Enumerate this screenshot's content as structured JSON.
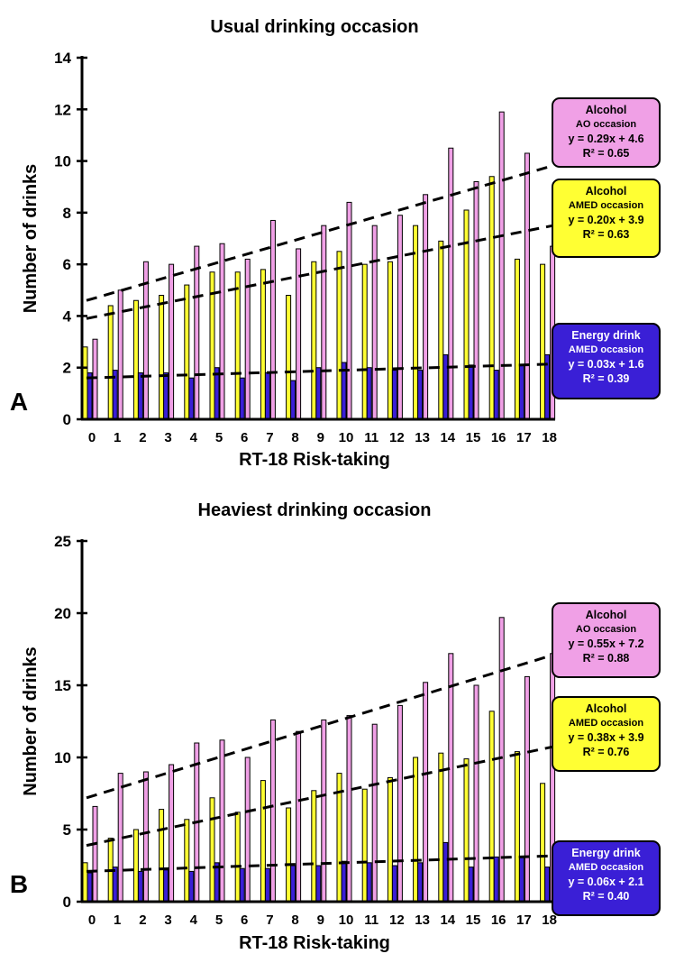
{
  "chart_data": [
    {
      "type": "bar",
      "panel_label": "A",
      "title": "Usual drinking occasion",
      "xlabel": "RT-18 Risk-taking",
      "ylabel": "Number of drinks",
      "ylim": [
        0,
        14
      ],
      "yticks": [
        "0",
        "2",
        "4",
        "6",
        "8",
        "10",
        "12",
        "14"
      ],
      "categories": [
        "0",
        "1",
        "2",
        "3",
        "4",
        "5",
        "6",
        "7",
        "8",
        "9",
        "10",
        "11",
        "12",
        "13",
        "14",
        "15",
        "16",
        "17",
        "18"
      ],
      "series": [
        {
          "name": "Alcohol AMED occasion",
          "color": "#ffff33",
          "values": [
            2.8,
            4.4,
            4.6,
            4.8,
            5.2,
            5.7,
            5.7,
            5.8,
            4.8,
            6.1,
            6.5,
            6.0,
            6.1,
            7.5,
            6.9,
            8.1,
            9.4,
            6.2,
            6.0
          ],
          "trend": {
            "slope": 0.2,
            "intercept": 3.9
          }
        },
        {
          "name": "Energy drink AMED occasion",
          "color": "#3a1fd6",
          "values": [
            1.8,
            1.9,
            1.8,
            1.8,
            1.6,
            2.0,
            1.6,
            1.8,
            1.5,
            2.0,
            2.2,
            2.0,
            1.9,
            1.9,
            2.5,
            2.1,
            1.9,
            2.1,
            2.5
          ],
          "trend": {
            "slope": 0.03,
            "intercept": 1.6
          }
        },
        {
          "name": "Alcohol AO occasion",
          "color": "#f0a0e6",
          "values": [
            3.1,
            5.0,
            6.1,
            6.0,
            6.7,
            6.8,
            6.2,
            7.7,
            6.6,
            7.5,
            8.4,
            7.5,
            7.9,
            8.7,
            10.5,
            9.2,
            11.9,
            10.3,
            6.7
          ],
          "trend": {
            "slope": 0.29,
            "intercept": 4.6
          }
        }
      ],
      "legend": [
        {
          "title": "Alcohol",
          "sub": "AO occasion",
          "eq": "y = 0.29x + 4.6",
          "r2": "R² = 0.65",
          "bg": "#f0a0e6",
          "fg": "#000000"
        },
        {
          "title": "Alcohol",
          "sub": "AMED occasion",
          "eq": "y = 0.20x + 3.9",
          "r2": "R² = 0.63",
          "bg": "#ffff33",
          "fg": "#000000"
        },
        {
          "title": "Energy drink",
          "sub": "AMED occasion",
          "eq": "y = 0.03x + 1.6",
          "r2": "R² = 0.39",
          "bg": "#3a1fd6",
          "fg": "#ffffff"
        }
      ]
    },
    {
      "type": "bar",
      "panel_label": "B",
      "title": "Heaviest drinking occasion",
      "xlabel": "RT-18 Risk-taking",
      "ylabel": "Number of drinks",
      "ylim": [
        0,
        25
      ],
      "yticks": [
        "0",
        "5",
        "10",
        "15",
        "20",
        "25"
      ],
      "categories": [
        "0",
        "1",
        "2",
        "3",
        "4",
        "5",
        "6",
        "7",
        "8",
        "9",
        "10",
        "11",
        "12",
        "13",
        "14",
        "15",
        "16",
        "17",
        "18"
      ],
      "series": [
        {
          "name": "Alcohol AMED occasion",
          "color": "#ffff33",
          "values": [
            2.7,
            4.4,
            5.0,
            6.4,
            5.7,
            7.2,
            6.2,
            8.4,
            6.5,
            7.7,
            8.9,
            7.8,
            8.6,
            10.0,
            10.3,
            9.9,
            13.2,
            10.4,
            8.2
          ],
          "trend": {
            "slope": 0.38,
            "intercept": 3.9
          }
        },
        {
          "name": "Energy drink AMED occasion",
          "color": "#3a1fd6",
          "values": [
            2.0,
            2.4,
            2.1,
            2.2,
            2.1,
            2.7,
            2.3,
            2.3,
            2.5,
            2.5,
            2.8,
            2.7,
            2.5,
            2.7,
            4.1,
            2.4,
            3.1,
            3.1,
            2.4
          ],
          "trend": {
            "slope": 0.06,
            "intercept": 2.1
          }
        },
        {
          "name": "Alcohol AO occasion",
          "color": "#f0a0e6",
          "values": [
            6.6,
            8.9,
            9.0,
            9.5,
            11.0,
            11.2,
            10.0,
            12.6,
            11.8,
            12.6,
            12.9,
            12.3,
            13.6,
            15.2,
            17.2,
            15.0,
            19.7,
            15.6,
            17.2
          ],
          "trend": {
            "slope": 0.55,
            "intercept": 7.2
          }
        }
      ],
      "legend": [
        {
          "title": "Alcohol",
          "sub": "AO occasion",
          "eq": "y = 0.55x + 7.2",
          "r2": "R² = 0.88",
          "bg": "#f0a0e6",
          "fg": "#000000"
        },
        {
          "title": "Alcohol",
          "sub": "AMED occasion",
          "eq": "y = 0.38x + 3.9",
          "r2": "R² = 0.76",
          "bg": "#ffff33",
          "fg": "#000000"
        },
        {
          "title": "Energy drink",
          "sub": "AMED occasion",
          "eq": "y = 0.06x + 2.1",
          "r2": "R² = 0.40",
          "bg": "#3a1fd6",
          "fg": "#ffffff"
        }
      ]
    }
  ]
}
